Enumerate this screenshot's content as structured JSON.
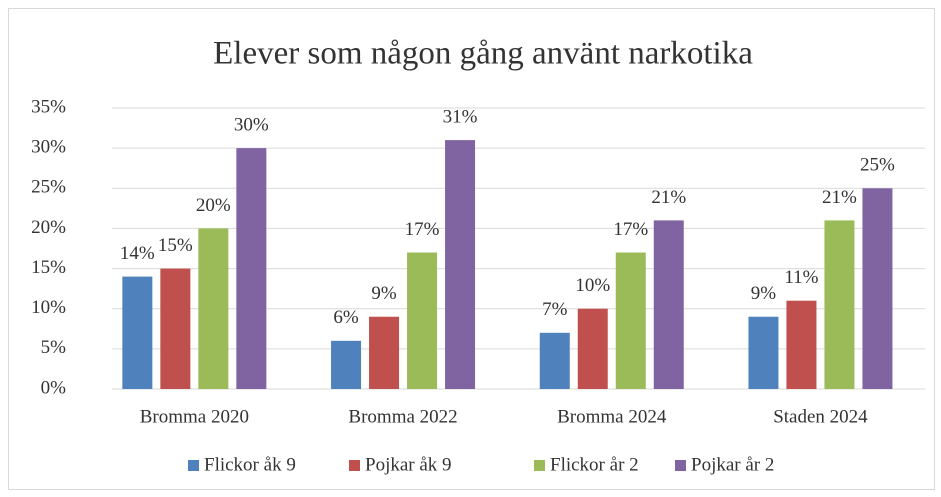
{
  "chart_data": {
    "type": "bar",
    "title": "Elever som någon gång använt narkotika",
    "categories": [
      "Bromma 2020",
      "Bromma 2022",
      "Bromma 2024",
      "Staden 2024"
    ],
    "series": [
      {
        "name": "Flickor åk 9",
        "color": "#4f81bd",
        "values": [
          14,
          6,
          7,
          9
        ],
        "value_labels": [
          "14%",
          "6%",
          "7%",
          "9%"
        ]
      },
      {
        "name": "Pojkar åk 9",
        "color": "#c0504d",
        "values": [
          15,
          9,
          10,
          11
        ],
        "value_labels": [
          "15%",
          "9%",
          "10%",
          "11%"
        ]
      },
      {
        "name": "Flickor år 2",
        "color": "#9bbb59",
        "values": [
          20,
          17,
          17,
          21
        ],
        "value_labels": [
          "20%",
          "17%",
          "17%",
          "21%"
        ]
      },
      {
        "name": "Pojkar år 2",
        "color": "#8064a2",
        "values": [
          30,
          31,
          21,
          25
        ],
        "value_labels": [
          "30%",
          "31%",
          "21%",
          "25%"
        ]
      }
    ],
    "ylim": [
      0,
      35
    ],
    "yticks": [
      {
        "value": 0,
        "label": "0%"
      },
      {
        "value": 5,
        "label": "5%"
      },
      {
        "value": 10,
        "label": "10%"
      },
      {
        "value": 15,
        "label": "15%"
      },
      {
        "value": 20,
        "label": "20%"
      },
      {
        "value": 25,
        "label": "25%"
      },
      {
        "value": 30,
        "label": "30%"
      },
      {
        "value": 35,
        "label": "35%"
      }
    ],
    "grid": true,
    "legend": "bottom"
  }
}
